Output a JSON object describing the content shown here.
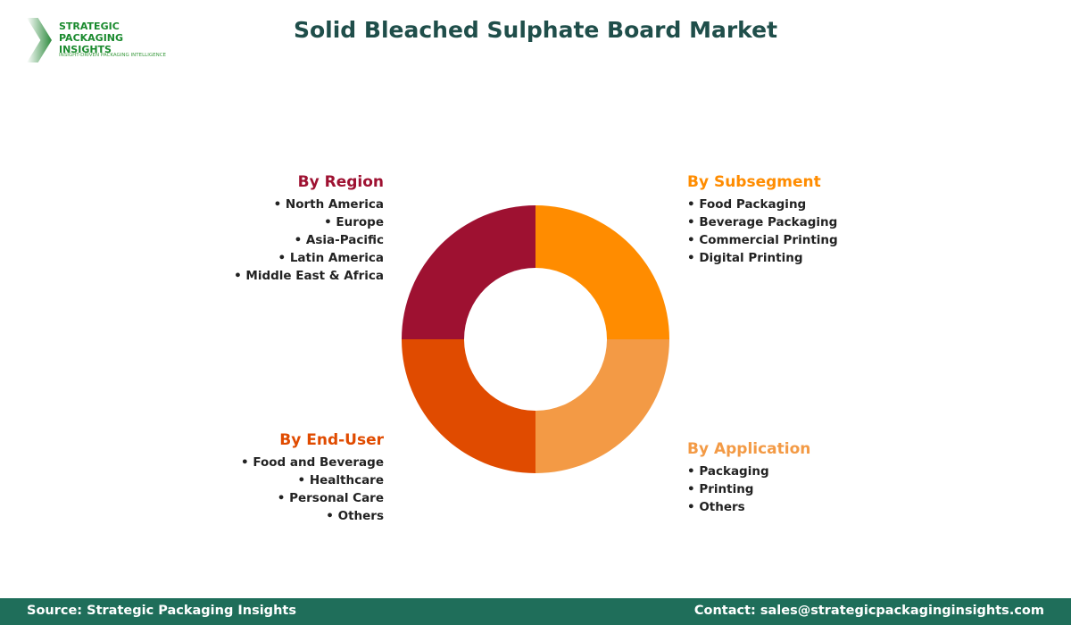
{
  "title": "Solid Bleached Sulphate Board Market",
  "logo": {
    "line1": "STRATEGIC",
    "line2": "PACKAGING INSIGHTS",
    "tagline": "INSIGHT-DRIVEN PACKAGING INTELLIGENCE"
  },
  "chart_data": {
    "type": "pie",
    "donut": true,
    "categories": [
      "By Subsegment",
      "By Application",
      "By End-User",
      "By Region"
    ],
    "values": [
      25,
      25,
      25,
      25
    ],
    "colors": [
      "#FF8C00",
      "#F39A45",
      "#E04B00",
      "#9E1131"
    ]
  },
  "groups": {
    "region": {
      "title": "By Region",
      "color": "#9E1131",
      "items": [
        "North America",
        "Europe",
        "Asia-Pacific",
        "Latin America",
        "Middle East & Africa"
      ]
    },
    "subsegment": {
      "title": "By Subsegment",
      "color": "#FF8C00",
      "items": [
        "Food Packaging",
        "Beverage Packaging",
        "Commercial Printing",
        "Digital Printing"
      ]
    },
    "enduser": {
      "title": "By End-User",
      "color": "#E04B00",
      "items": [
        "Food and Beverage",
        "Healthcare",
        "Personal Care",
        "Others"
      ]
    },
    "application": {
      "title": "By Application",
      "color": "#F39A45",
      "items": [
        "Packaging",
        "Printing",
        "Others"
      ]
    }
  },
  "footer": {
    "source": "Source: Strategic Packaging Insights",
    "contact": "Contact: sales@strategicpackaginginsights.com"
  }
}
